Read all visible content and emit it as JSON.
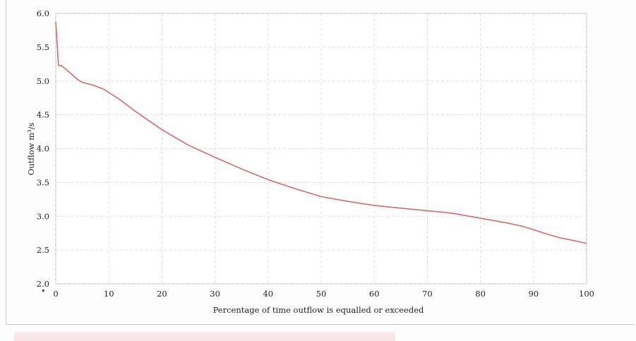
{
  "chart_data": {
    "type": "line",
    "title": "",
    "xlabel": "Percentage of time outflow is equalled or exceeded",
    "ylabel": "Outflow m³/s",
    "xlim": [
      0,
      100
    ],
    "ylim": [
      2.0,
      6.0
    ],
    "x_ticks": [
      "0",
      "10",
      "20",
      "30",
      "40",
      "50",
      "60",
      "70",
      "80",
      "90",
      "100"
    ],
    "y_ticks": [
      "2.0",
      "2.5",
      "3.0",
      "3.5",
      "4.0",
      "4.5",
      "5.0",
      "5.5",
      "6.0"
    ],
    "grid": true,
    "line_color": "#d46a6a",
    "series": [
      {
        "name": "",
        "x": [
          0,
          0.3,
          0.5,
          1,
          2,
          4,
          5,
          7,
          9,
          10,
          12,
          15,
          20,
          25,
          30,
          35,
          40,
          45,
          50,
          55,
          60,
          65,
          70,
          73,
          75,
          80,
          85,
          88,
          90,
          92,
          95,
          97,
          100
        ],
        "y": [
          5.88,
          5.5,
          5.23,
          5.23,
          5.17,
          5.03,
          4.98,
          4.94,
          4.88,
          4.83,
          4.73,
          4.55,
          4.28,
          4.05,
          3.87,
          3.7,
          3.54,
          3.41,
          3.29,
          3.22,
          3.16,
          3.12,
          3.08,
          3.06,
          3.04,
          2.97,
          2.9,
          2.85,
          2.8,
          2.75,
          2.68,
          2.65,
          2.6
        ]
      }
    ]
  },
  "margin_mark": "•"
}
